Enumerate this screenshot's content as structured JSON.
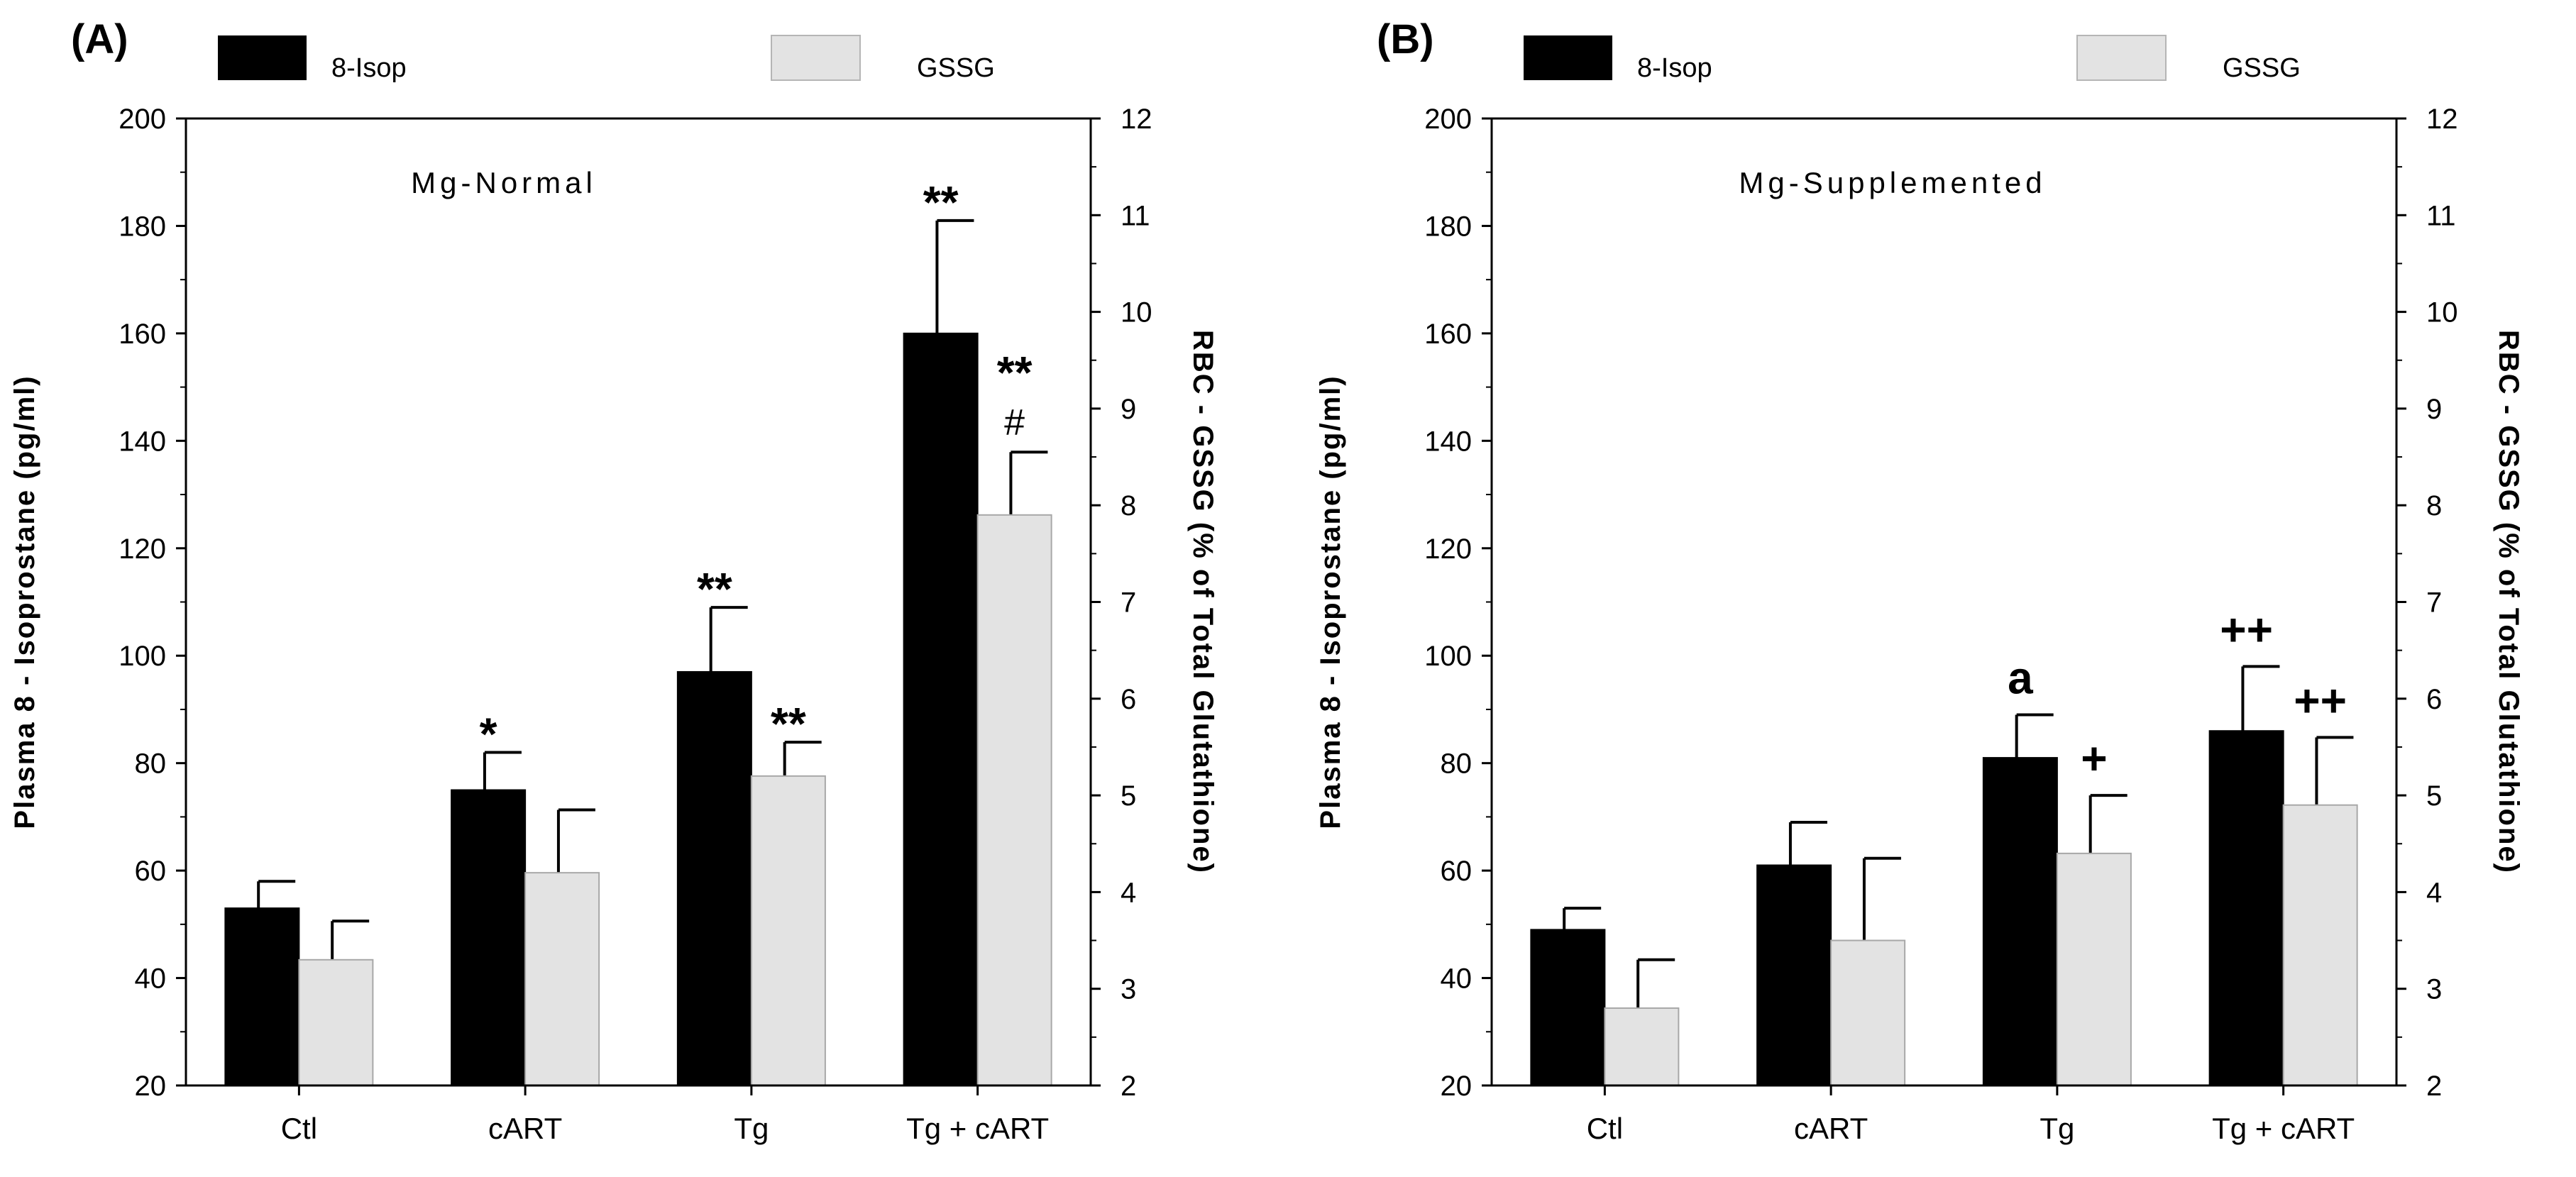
{
  "chart_data": [
    {
      "type": "bar",
      "panel_label": "(A)",
      "condition": "Mg-Normal",
      "categories": [
        "Ctl",
        "cART",
        "Tg",
        "Tg + cART"
      ],
      "series": [
        {
          "name": "8-Isop",
          "axis": "left",
          "color": "#000000",
          "values": [
            53,
            75,
            97,
            160
          ],
          "errors": [
            5,
            7,
            12,
            21
          ]
        },
        {
          "name": "GSSG",
          "axis": "right",
          "color": "#e3e3e3",
          "values": [
            3.3,
            4.2,
            5.2,
            7.9
          ],
          "errors": [
            0.4,
            0.65,
            0.35,
            0.65
          ]
        }
      ],
      "annotations": [
        {
          "category": 1,
          "series": 0,
          "text": "*"
        },
        {
          "category": 2,
          "series": 0,
          "text": "**"
        },
        {
          "category": 2,
          "series": 1,
          "text": "**"
        },
        {
          "category": 3,
          "series": 0,
          "text": "**"
        },
        {
          "category": 3,
          "series": 1,
          "text": "**"
        },
        {
          "category": 3,
          "series": 1,
          "text": "#"
        }
      ],
      "ylabel": "Plasma 8 - Isoprostane (pg/ml)",
      "y2label": "RBC - GSSG  (%  of Total Glutathione)",
      "ylim": [
        20,
        200
      ],
      "y2lim": [
        2,
        12
      ],
      "yticks": [
        20,
        40,
        60,
        80,
        100,
        120,
        140,
        160,
        180,
        200
      ],
      "y2ticks": [
        2,
        3,
        4,
        5,
        6,
        7,
        8,
        9,
        10,
        11,
        12
      ],
      "legend": [
        "8-Isop",
        "GSSG"
      ],
      "legend_position": "top"
    },
    {
      "type": "bar",
      "panel_label": "(B)",
      "condition": "Mg-Supplemented",
      "categories": [
        "Ctl",
        "cART",
        "Tg",
        "Tg + cART"
      ],
      "series": [
        {
          "name": "8-Isop",
          "axis": "left",
          "color": "#000000",
          "values": [
            49,
            61,
            81,
            86
          ],
          "errors": [
            4,
            8,
            8,
            12
          ]
        },
        {
          "name": "GSSG",
          "axis": "right",
          "color": "#e3e3e3",
          "values": [
            2.8,
            3.5,
            4.4,
            4.9
          ],
          "errors": [
            0.5,
            0.85,
            0.6,
            0.7
          ]
        }
      ],
      "annotations": [
        {
          "category": 2,
          "series": 0,
          "text": "a"
        },
        {
          "category": 2,
          "series": 1,
          "text": "+"
        },
        {
          "category": 3,
          "series": 0,
          "text": "++"
        },
        {
          "category": 3,
          "series": 1,
          "text": "++"
        }
      ],
      "ylabel": "Plasma 8 - Isoprostane (pg/ml)",
      "y2label": "RBC - GSSG  (%  of Total Glutathione)",
      "ylim": [
        20,
        200
      ],
      "y2lim": [
        2,
        12
      ],
      "yticks": [
        20,
        40,
        60,
        80,
        100,
        120,
        140,
        160,
        180,
        200
      ],
      "y2ticks": [
        2,
        3,
        4,
        5,
        6,
        7,
        8,
        9,
        10,
        11,
        12
      ],
      "legend": [
        "8-Isop",
        "GSSG"
      ],
      "legend_position": "top"
    }
  ]
}
